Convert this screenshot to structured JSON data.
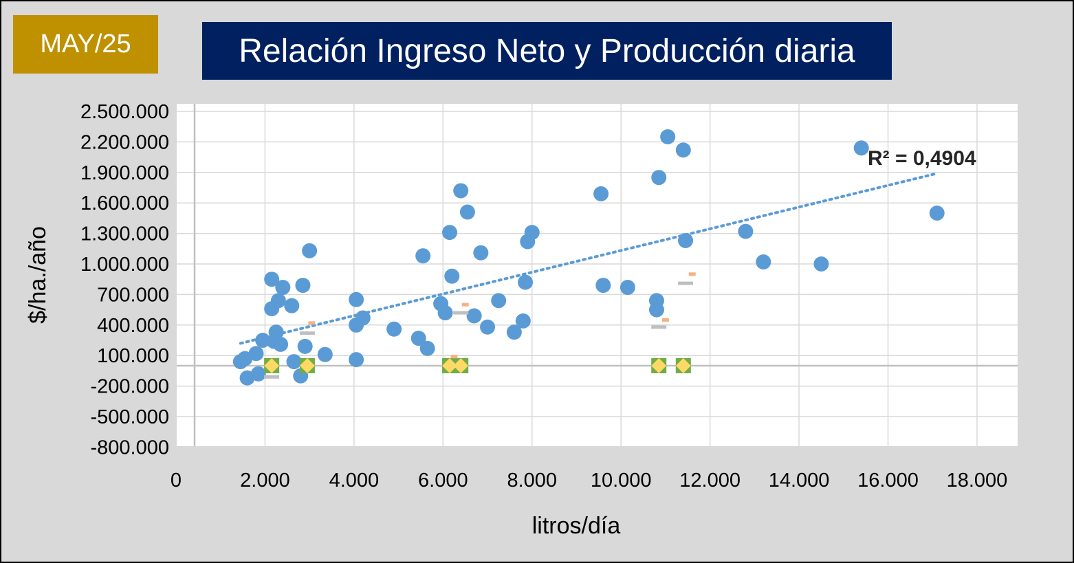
{
  "badge": {
    "label": "MAY/25"
  },
  "colors": {
    "background": "#d9d9d9",
    "badge": "#bf9000",
    "title_bg": "#002060",
    "points": "#5b9bd5",
    "trendline": "#5b9bd5",
    "diamond_fill": "#ffd966",
    "square_fill": "#70ad47",
    "dash_orange": "#f4b183",
    "dash_gray": "#bfbfbf"
  },
  "chart_data": {
    "type": "scatter",
    "title": "Relación Ingreso Neto y Producción diaria",
    "xlabel": "litros/día",
    "ylabel": "$/ha./año",
    "xlim": [
      0,
      19000
    ],
    "ylim": [
      -800000,
      2500000
    ],
    "x_ticks": [
      0,
      2000,
      4000,
      6000,
      8000,
      10000,
      12000,
      14000,
      16000,
      18000
    ],
    "x_tick_labels": [
      "0",
      "2.000",
      "4.000",
      "6.000",
      "8.000",
      "10.000",
      "12.000",
      "14.000",
      "16.000",
      "18.000"
    ],
    "y_ticks": [
      -800000,
      -500000,
      -200000,
      100000,
      400000,
      700000,
      1000000,
      1300000,
      1600000,
      1900000,
      2200000,
      2500000
    ],
    "y_tick_labels": [
      "-800.000",
      "-500.000",
      "-200.000",
      "100.000",
      "400.000",
      "700.000",
      "1.000.000",
      "1.300.000",
      "1.600.000",
      "1.900.000",
      "2.200.000",
      "2.500.000"
    ],
    "grid": true,
    "r2_label": "R² = 0,4904",
    "series": [
      {
        "marker": "circle",
        "color": "#5b9bd5",
        "points": [
          [
            1450,
            40000
          ],
          [
            1550,
            70000
          ],
          [
            1600,
            -120000
          ],
          [
            1800,
            120000
          ],
          [
            1950,
            250000
          ],
          [
            1850,
            -80000
          ],
          [
            2150,
            850000
          ],
          [
            2150,
            560000
          ],
          [
            2250,
            330000
          ],
          [
            2200,
            240000
          ],
          [
            2300,
            640000
          ],
          [
            2400,
            770000
          ],
          [
            2350,
            210000
          ],
          [
            2600,
            590000
          ],
          [
            2650,
            40000
          ],
          [
            2800,
            -100000
          ],
          [
            2850,
            790000
          ],
          [
            2900,
            190000
          ],
          [
            3000,
            1130000
          ],
          [
            3350,
            110000
          ],
          [
            4050,
            650000
          ],
          [
            4050,
            400000
          ],
          [
            4200,
            470000
          ],
          [
            4050,
            60000
          ],
          [
            4900,
            360000
          ],
          [
            5450,
            270000
          ],
          [
            5550,
            1080000
          ],
          [
            5650,
            170000
          ],
          [
            5950,
            610000
          ],
          [
            6050,
            520000
          ],
          [
            6150,
            1310000
          ],
          [
            6200,
            880000
          ],
          [
            6400,
            1720000
          ],
          [
            6550,
            1510000
          ],
          [
            6700,
            490000
          ],
          [
            6850,
            1110000
          ],
          [
            7000,
            380000
          ],
          [
            7250,
            640000
          ],
          [
            7600,
            330000
          ],
          [
            7800,
            440000
          ],
          [
            7850,
            820000
          ],
          [
            7900,
            1220000
          ],
          [
            8000,
            1310000
          ],
          [
            9550,
            1690000
          ],
          [
            9600,
            790000
          ],
          [
            10150,
            770000
          ],
          [
            10800,
            640000
          ],
          [
            10800,
            550000
          ],
          [
            10850,
            1850000
          ],
          [
            11050,
            2250000
          ],
          [
            11400,
            2120000
          ],
          [
            11450,
            1230000
          ],
          [
            12800,
            1320000
          ],
          [
            13200,
            1020000
          ],
          [
            14500,
            1000000
          ],
          [
            15400,
            2140000
          ],
          [
            17100,
            1500000
          ]
        ]
      },
      {
        "marker": "square",
        "color": "#70ad47",
        "points": [
          [
            2150,
            0
          ],
          [
            2950,
            0
          ],
          [
            6150,
            0
          ],
          [
            6400,
            0
          ],
          [
            10850,
            0
          ],
          [
            11400,
            0
          ]
        ]
      },
      {
        "marker": "diamond",
        "color": "#ffd966",
        "points": [
          [
            2150,
            0
          ],
          [
            2950,
            0
          ],
          [
            6150,
            0
          ],
          [
            6400,
            0
          ],
          [
            10850,
            0
          ],
          [
            11400,
            0
          ]
        ]
      },
      {
        "marker": "dash",
        "color": "#f4b183",
        "points": [
          [
            3050,
            420000
          ],
          [
            6250,
            90000
          ],
          [
            6500,
            600000
          ],
          [
            11000,
            450000
          ],
          [
            11600,
            900000
          ]
        ]
      },
      {
        "marker": "dash",
        "color": "#bfbfbf",
        "points": [
          [
            2150,
            -110000
          ],
          [
            2950,
            320000
          ],
          [
            6400,
            520000
          ],
          [
            10850,
            380000
          ],
          [
            11450,
            810000
          ]
        ]
      }
    ],
    "trendline": {
      "style": "dotted",
      "from": [
        1450,
        220000
      ],
      "to": [
        17100,
        1890000
      ]
    }
  }
}
